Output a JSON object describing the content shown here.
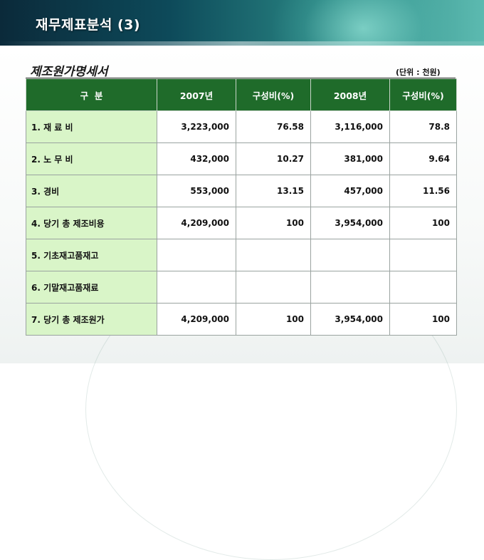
{
  "header": {
    "title": "재무제표분석 (3)"
  },
  "subtitle": "제조원가명세서",
  "unit_note": "(단위 : 천원)",
  "table": {
    "headers": [
      "구  분",
      "2007년",
      "구성비(%)",
      "2008년",
      "구성비(%)"
    ],
    "rows": [
      {
        "label": "1. 재 료 비",
        "v2007": "3,223,000",
        "r2007": "76.58",
        "v2008": "3,116,000",
        "r2008": "78.8"
      },
      {
        "label": "2. 노 무 비",
        "v2007": "432,000",
        "r2007": "10.27",
        "v2008": "381,000",
        "r2008": "9.64"
      },
      {
        "label": "3. 경비",
        "v2007": "553,000",
        "r2007": "13.15",
        "v2008": "457,000",
        "r2008": "11.56"
      },
      {
        "label": "4. 당기 총 제조비용",
        "v2007": "4,209,000",
        "r2007": "100",
        "v2008": "3,954,000",
        "r2008": "100"
      },
      {
        "label": "5. 기초재고품재고",
        "v2007": "",
        "r2007": "",
        "v2008": "",
        "r2008": ""
      },
      {
        "label": "6. 기말재고품재료",
        "v2007": "",
        "r2007": "",
        "v2008": "",
        "r2008": ""
      },
      {
        "label": "7. 당기 총 제조원가",
        "v2007": "4,209,000",
        "r2007": "100",
        "v2008": "3,954,000",
        "r2008": "100"
      }
    ]
  },
  "colors": {
    "header_green": "#1f6b2a",
    "label_green": "#d9f5c8",
    "banner_teal": "#0d4a5a"
  }
}
